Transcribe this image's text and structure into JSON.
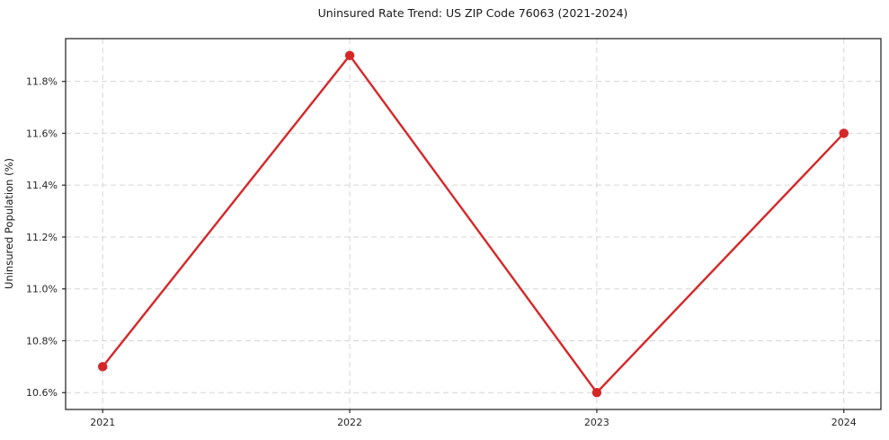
{
  "chart_data": {
    "type": "line",
    "title": "Uninsured Rate Trend: US ZIP Code 76063 (2021-2024)",
    "xlabel": "",
    "ylabel": "Uninsured Population (%)",
    "categories": [
      "2021",
      "2022",
      "2023",
      "2024"
    ],
    "series": [
      {
        "name": "uninsured-rate",
        "values": [
          10.7,
          11.9,
          10.6,
          11.6
        ],
        "color": "#d62728",
        "marker": "circle",
        "line_width": 2.4,
        "marker_radius": 5.2
      }
    ],
    "ylim": [
      10.535,
      11.965
    ],
    "yticks": [
      10.6,
      10.8,
      11.0,
      11.2,
      11.4,
      11.6,
      11.8
    ],
    "ytick_labels": [
      "10.6%",
      "10.8%",
      "11.0%",
      "11.2%",
      "11.4%",
      "11.6%",
      "11.8%"
    ],
    "x_margin_fraction": 0.05,
    "grid": true,
    "grid_color": "#d5d5d5",
    "grid_dash": "6 4",
    "axis_color": "#1a1a1a",
    "tick_color": "#262626",
    "legend_position": "none",
    "background_color": "#ffffff"
  }
}
